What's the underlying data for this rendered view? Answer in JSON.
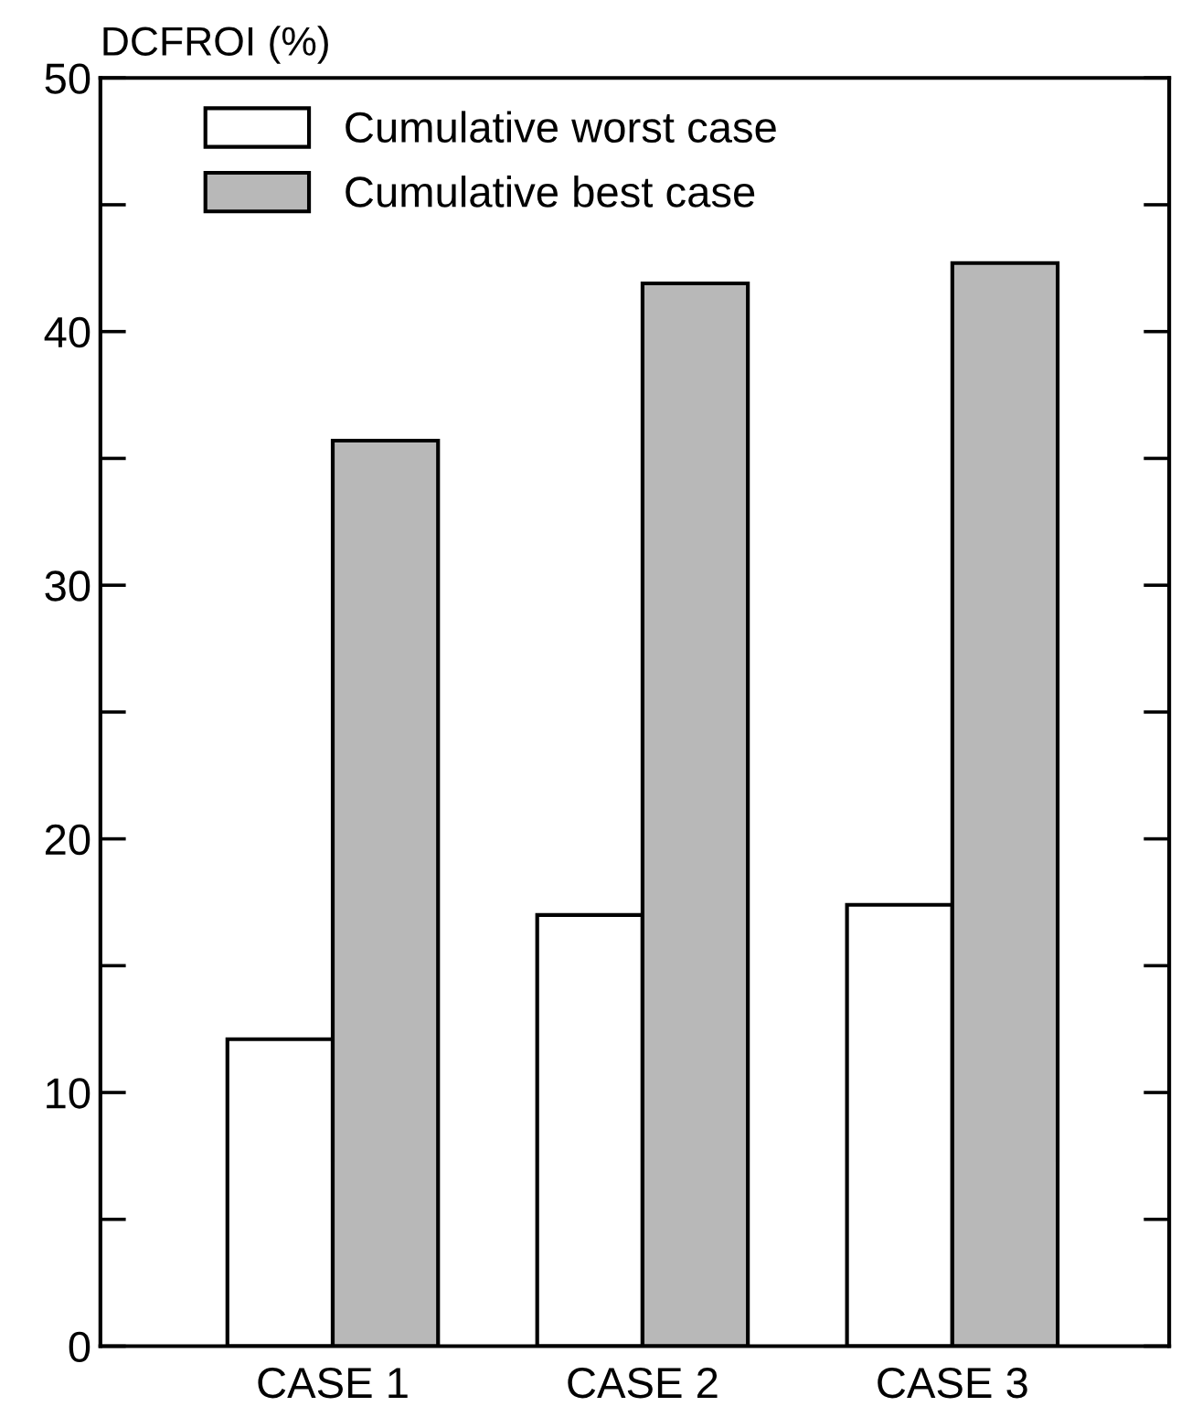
{
  "chart_data": {
    "type": "bar",
    "ylabel": "DCFROI (%)",
    "categories": [
      "CASE 1",
      "CASE 2",
      "CASE 3"
    ],
    "series": [
      {
        "name": "Cumulative worst case",
        "color": "#ffffff",
        "values": [
          12.1,
          17.0,
          17.4
        ]
      },
      {
        "name": "Cumulative best case",
        "color": "#b8b8b8",
        "values": [
          35.7,
          41.9,
          42.7
        ]
      }
    ],
    "ylim": [
      0,
      50
    ],
    "yticks": [
      0,
      {
        "value": 5,
        "label": null
      },
      10,
      {
        "value": 15,
        "label": null
      },
      20,
      {
        "value": 25,
        "label": null
      },
      30,
      {
        "value": 35,
        "label": null
      },
      40,
      {
        "value": 45,
        "label": null
      },
      50
    ],
    "grid": false,
    "legend": "top left"
  }
}
